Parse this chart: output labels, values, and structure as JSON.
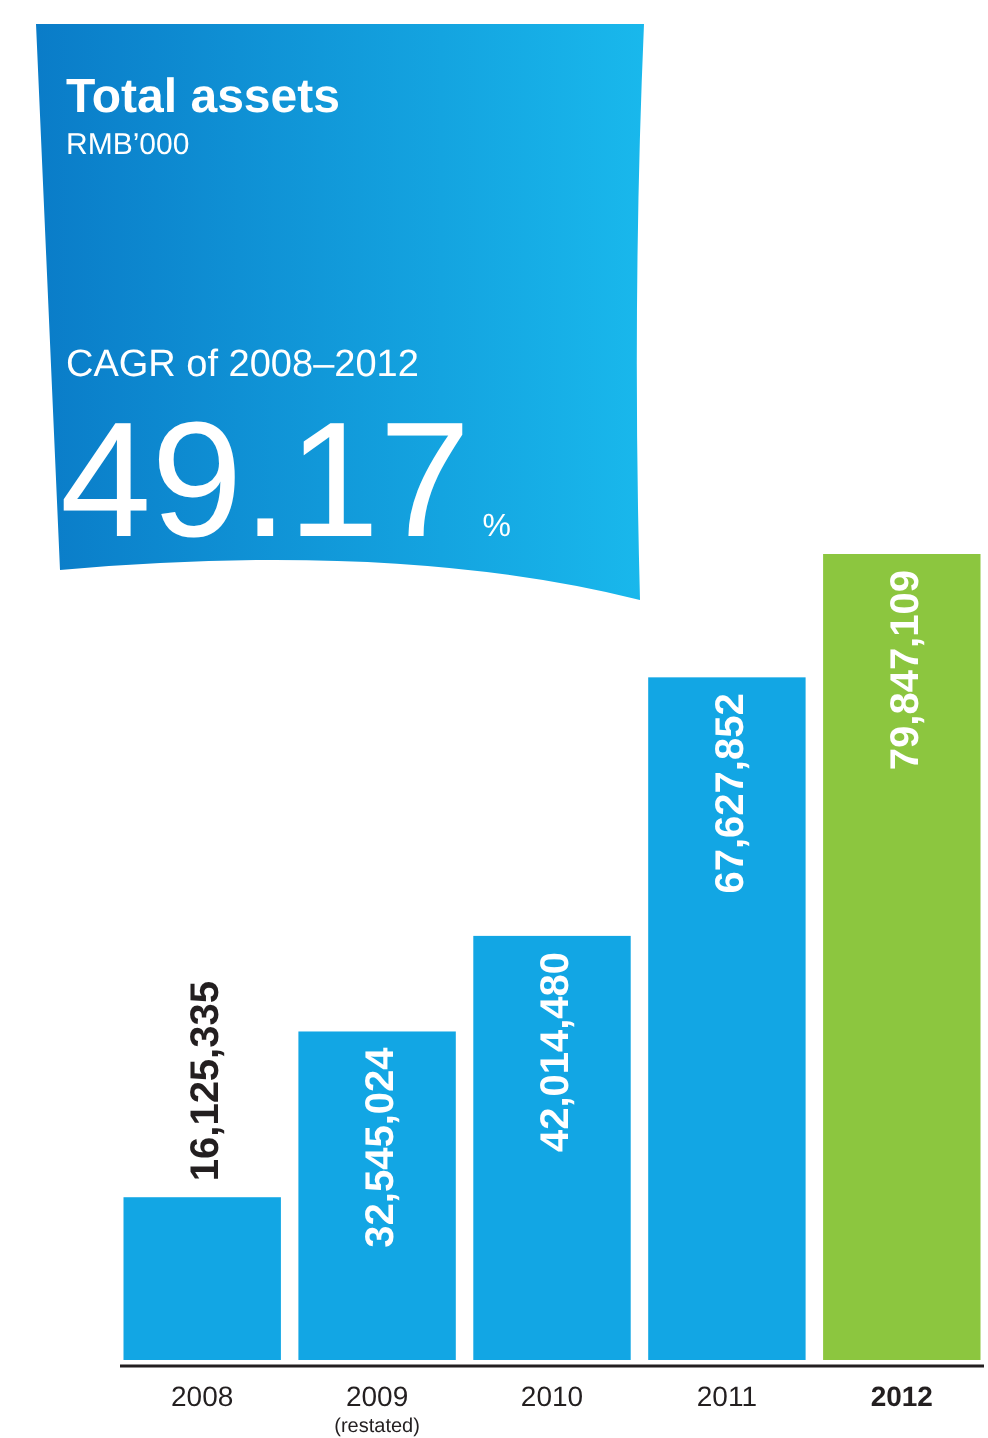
{
  "chart_data": {
    "type": "bar",
    "title": "Total assets",
    "subtitle": "RMB’000",
    "annotations": [
      "CAGR of 2008–2012",
      "49.17%"
    ],
    "categories": [
      "2008",
      "2009$_{(restated)}$",
      "2010",
      "2011",
      "2012"
    ],
    "values": [
      16125335,
      32545024,
      42014480,
      67627852,
      79847109
    ],
    "value_labels": [
      "16,125,335",
      "32,545,024",
      "42,014,480",
      "67,627,852",
      "79,847,109"
    ],
    "colors": [
      "#12a6e4",
      "#12a6e4",
      "#12a6e4",
      "#12a6e4",
      "#8cc63f"
    ]
  }
}
